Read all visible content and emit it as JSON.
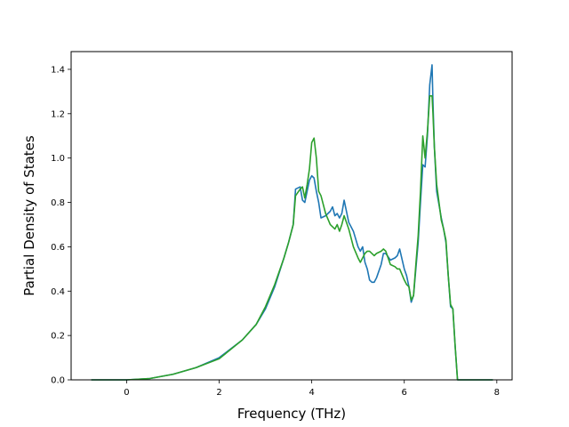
{
  "chart_data": {
    "type": "line",
    "xlabel": "Frequency (THz)",
    "ylabel": "Partial Density of States",
    "xlim": [
      -1.2,
      8.33
    ],
    "ylim": [
      0.0,
      1.48
    ],
    "xticks": [
      0,
      2,
      4,
      6,
      8
    ],
    "xtick_labels": [
      "0",
      "2",
      "4",
      "6",
      "8"
    ],
    "yticks": [
      0.0,
      0.2,
      0.4,
      0.6,
      0.8,
      1.0,
      1.2,
      1.4
    ],
    "ytick_labels": [
      "0.0",
      "0.2",
      "0.4",
      "0.6",
      "0.8",
      "1.0",
      "1.2",
      "1.4"
    ],
    "grid": false,
    "series": [
      {
        "color": "#1f77b4",
        "x": [
          -0.75,
          -0.5,
          0.0,
          0.5,
          1.0,
          1.5,
          2.0,
          2.5,
          2.8,
          3.0,
          3.2,
          3.4,
          3.5,
          3.6,
          3.65,
          3.75,
          3.8,
          3.85,
          3.9,
          3.95,
          4.0,
          4.05,
          4.1,
          4.15,
          4.2,
          4.3,
          4.4,
          4.45,
          4.5,
          4.55,
          4.6,
          4.65,
          4.7,
          4.8,
          4.9,
          5.0,
          5.05,
          5.1,
          5.15,
          5.2,
          5.25,
          5.3,
          5.35,
          5.4,
          5.5,
          5.55,
          5.6,
          5.7,
          5.8,
          5.85,
          5.9,
          6.0,
          6.05,
          6.1,
          6.15,
          6.2,
          6.25,
          6.3,
          6.35,
          6.4,
          6.45,
          6.5,
          6.55,
          6.6,
          6.62,
          6.65,
          6.7,
          6.8,
          6.85,
          6.9,
          6.95,
          7.0,
          7.05,
          7.1,
          7.15,
          7.2,
          7.3,
          7.9
        ],
        "y": [
          0.0,
          0.0,
          0.0,
          0.006,
          0.025,
          0.055,
          0.1,
          0.18,
          0.25,
          0.32,
          0.42,
          0.55,
          0.62,
          0.7,
          0.86,
          0.87,
          0.81,
          0.8,
          0.85,
          0.9,
          0.92,
          0.91,
          0.85,
          0.8,
          0.73,
          0.74,
          0.76,
          0.78,
          0.74,
          0.75,
          0.73,
          0.75,
          0.81,
          0.71,
          0.67,
          0.6,
          0.58,
          0.6,
          0.53,
          0.5,
          0.45,
          0.44,
          0.44,
          0.46,
          0.52,
          0.57,
          0.57,
          0.54,
          0.55,
          0.56,
          0.59,
          0.5,
          0.47,
          0.42,
          0.35,
          0.38,
          0.5,
          0.62,
          0.8,
          0.97,
          0.96,
          1.1,
          1.33,
          1.42,
          1.25,
          1.05,
          0.85,
          0.73,
          0.68,
          0.62,
          0.47,
          0.33,
          0.32,
          0.15,
          0.0,
          0.0,
          0.0,
          0.0
        ]
      },
      {
        "color": "#2ca02c",
        "x": [
          -0.75,
          -0.5,
          0.0,
          0.5,
          1.0,
          1.5,
          2.0,
          2.5,
          2.8,
          3.0,
          3.2,
          3.4,
          3.5,
          3.6,
          3.65,
          3.75,
          3.8,
          3.85,
          3.9,
          3.95,
          4.0,
          4.05,
          4.1,
          4.15,
          4.2,
          4.3,
          4.4,
          4.45,
          4.5,
          4.55,
          4.6,
          4.65,
          4.7,
          4.8,
          4.9,
          5.0,
          5.05,
          5.1,
          5.15,
          5.2,
          5.25,
          5.3,
          5.35,
          5.4,
          5.5,
          5.55,
          5.6,
          5.7,
          5.8,
          5.85,
          5.9,
          6.0,
          6.05,
          6.1,
          6.15,
          6.2,
          6.25,
          6.3,
          6.35,
          6.4,
          6.45,
          6.5,
          6.55,
          6.6,
          6.62,
          6.65,
          6.7,
          6.8,
          6.85,
          6.9,
          6.95,
          7.0,
          7.05,
          7.1,
          7.15,
          7.2,
          7.3,
          7.9
        ],
        "y": [
          0.0,
          0.0,
          0.0,
          0.006,
          0.025,
          0.055,
          0.095,
          0.18,
          0.25,
          0.33,
          0.43,
          0.55,
          0.62,
          0.7,
          0.83,
          0.86,
          0.87,
          0.82,
          0.88,
          0.95,
          1.07,
          1.09,
          1.0,
          0.85,
          0.83,
          0.75,
          0.7,
          0.69,
          0.68,
          0.7,
          0.67,
          0.7,
          0.74,
          0.68,
          0.6,
          0.55,
          0.53,
          0.55,
          0.57,
          0.58,
          0.58,
          0.57,
          0.56,
          0.57,
          0.58,
          0.59,
          0.58,
          0.52,
          0.51,
          0.5,
          0.5,
          0.45,
          0.43,
          0.42,
          0.36,
          0.38,
          0.52,
          0.65,
          0.85,
          1.1,
          1.0,
          1.12,
          1.28,
          1.28,
          1.2,
          1.05,
          0.88,
          0.72,
          0.68,
          0.63,
          0.47,
          0.34,
          0.32,
          0.15,
          0.0,
          0.0,
          0.0,
          0.0
        ]
      }
    ]
  }
}
